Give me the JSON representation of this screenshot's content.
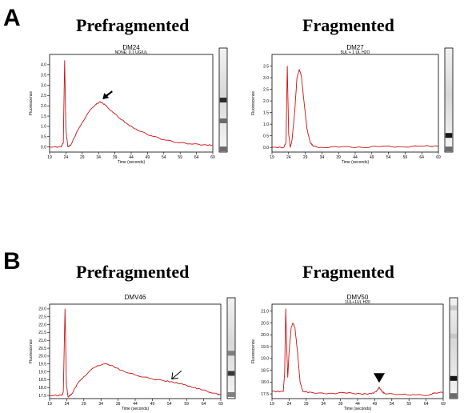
{
  "panels": [
    {
      "letter": "A",
      "left_heading": "Prefragmented",
      "right_heading": "Fragmented"
    },
    {
      "letter": "B",
      "left_heading": "Prefragmented",
      "right_heading": "Fragmented"
    }
  ],
  "colors": {
    "trace": "#cc1111",
    "axis": "#000000",
    "annotation": "#000000"
  },
  "chart_data": [
    {
      "id": "A-left",
      "type": "line",
      "title": "DM24",
      "subtitle": "NONE; 0.1 UG/UL",
      "xlabel": "Time (seconds)",
      "ylabel": "Fluorescence",
      "xlim": [
        19,
        69
      ],
      "ylim": [
        -0.25,
        4.5
      ],
      "xticks": [
        19,
        24,
        29,
        34,
        39,
        44,
        49,
        54,
        59,
        64,
        69
      ],
      "yticks": [
        0.0,
        0.5,
        1.0,
        1.5,
        2.0,
        2.5,
        3.0,
        3.5,
        4.0
      ],
      "ytick_decimals": 1,
      "series": [
        {
          "points": [
            [
              19,
              0.0
            ],
            [
              22.5,
              0.0
            ],
            [
              23.2,
              0.2
            ],
            [
              23.6,
              4.2
            ],
            [
              24.0,
              0.8
            ],
            [
              24.6,
              0.0
            ],
            [
              25.5,
              0.1
            ],
            [
              27,
              0.6
            ],
            [
              29,
              1.2
            ],
            [
              31,
              1.7
            ],
            [
              33,
              2.05
            ],
            [
              34.5,
              2.2
            ],
            [
              36,
              2.05
            ],
            [
              38,
              1.75
            ],
            [
              40,
              1.45
            ],
            [
              43,
              1.1
            ],
            [
              46,
              0.8
            ],
            [
              50,
              0.55
            ],
            [
              54,
              0.35
            ],
            [
              58,
              0.22
            ],
            [
              62,
              0.15
            ],
            [
              66,
              0.1
            ],
            [
              69,
              0.08
            ]
          ]
        }
      ],
      "annotations": [
        {
          "type": "arrow",
          "style": "filled",
          "x": 34.5,
          "y": 2.2,
          "direction": "down-left"
        }
      ],
      "gel_bands": [
        {
          "pos": 0.5,
          "strength": 0.9
        },
        {
          "pos": 0.7,
          "strength": 0.6
        },
        {
          "pos": 0.97,
          "strength": 0.6
        }
      ]
    },
    {
      "id": "A-right",
      "type": "line",
      "title": "DM27",
      "subtitle": "5UL + 1 UL H2O",
      "xlabel": "Time (seconds)",
      "ylabel": "Fluorescence",
      "xlim": [
        19,
        69
      ],
      "ylim": [
        -0.2,
        4.0
      ],
      "xticks": [
        19,
        24,
        29,
        34,
        39,
        44,
        49,
        54,
        59,
        64,
        69
      ],
      "yticks": [
        0.0,
        0.5,
        1.0,
        1.5,
        2.0,
        2.5,
        3.0,
        3.5
      ],
      "ytick_decimals": 1,
      "series": [
        {
          "points": [
            [
              19,
              0.0
            ],
            [
              22.5,
              0.0
            ],
            [
              23.2,
              0.2
            ],
            [
              23.6,
              3.5
            ],
            [
              24.0,
              0.6
            ],
            [
              24.5,
              0.0
            ],
            [
              25.0,
              0.3
            ],
            [
              25.8,
              1.5
            ],
            [
              26.5,
              3.0
            ],
            [
              27.2,
              3.35
            ],
            [
              27.8,
              3.1
            ],
            [
              28.6,
              2.0
            ],
            [
              29.5,
              0.8
            ],
            [
              30.5,
              0.2
            ],
            [
              31.5,
              0.05
            ],
            [
              34,
              0.0
            ],
            [
              40,
              0.03
            ],
            [
              46,
              0.0
            ],
            [
              52,
              0.05
            ],
            [
              58,
              0.02
            ],
            [
              64,
              0.06
            ],
            [
              69,
              0.05
            ]
          ]
        }
      ],
      "annotations": [],
      "gel_bands": [
        {
          "pos": 0.84,
          "strength": 1.0
        },
        {
          "pos": 0.97,
          "strength": 0.6
        }
      ]
    },
    {
      "id": "B-left",
      "type": "line",
      "title": "DMV46",
      "subtitle": "",
      "xlabel": "Time (seconds)",
      "ylabel": "Fluorescence",
      "xlim": [
        19,
        69
      ],
      "ylim": [
        17.3,
        23.3
      ],
      "xticks": [
        19,
        24,
        29,
        34,
        39,
        44,
        49,
        54,
        59,
        64,
        69
      ],
      "yticks": [
        17.5,
        18.0,
        18.5,
        19.0,
        19.5,
        20.0,
        20.5,
        21.0,
        21.5,
        22.0,
        22.5,
        23.0
      ],
      "ytick_decimals": 1,
      "series": [
        {
          "points": [
            [
              19,
              17.5
            ],
            [
              22.5,
              17.5
            ],
            [
              23.0,
              17.7
            ],
            [
              23.5,
              23.0
            ],
            [
              23.9,
              18.2
            ],
            [
              24.4,
              17.4
            ],
            [
              25.5,
              17.6
            ],
            [
              27,
              18.2
            ],
            [
              29,
              18.7
            ],
            [
              31,
              19.1
            ],
            [
              33,
              19.4
            ],
            [
              35,
              19.5
            ],
            [
              37,
              19.4
            ],
            [
              40,
              19.1
            ],
            [
              44,
              18.8
            ],
            [
              48,
              18.6
            ],
            [
              52,
              18.45
            ],
            [
              55,
              18.35
            ],
            [
              58,
              18.2
            ],
            [
              61,
              18.0
            ],
            [
              64,
              17.85
            ],
            [
              66,
              17.7
            ],
            [
              68,
              17.58
            ],
            [
              69,
              17.55
            ]
          ]
        }
      ],
      "annotations": [
        {
          "type": "arrow",
          "style": "open",
          "x": 54,
          "y": 18.4,
          "direction": "down-left"
        }
      ],
      "gel_bands": [
        {
          "pos": 0.55,
          "strength": 0.5
        },
        {
          "pos": 0.75,
          "strength": 0.85
        },
        {
          "pos": 0.96,
          "strength": 0.5
        }
      ]
    },
    {
      "id": "B-right",
      "type": "line",
      "title": "DMV50",
      "subtitle": "1UL+1UL H20",
      "xlabel": "Time (seconds)",
      "ylabel": "Fluorescence",
      "xlim": [
        19,
        69
      ],
      "ylim": [
        17.3,
        21.3
      ],
      "xticks": [
        19,
        24,
        29,
        34,
        39,
        44,
        49,
        54,
        59,
        64,
        69
      ],
      "yticks": [
        17.5,
        18.0,
        18.5,
        19.0,
        19.5,
        20.0,
        20.5,
        21.0
      ],
      "ytick_decimals": 1,
      "series": [
        {
          "points": [
            [
              19,
              17.6
            ],
            [
              22.3,
              17.6
            ],
            [
              22.7,
              18.4
            ],
            [
              23.0,
              21.1
            ],
            [
              23.3,
              19.5
            ],
            [
              23.6,
              18.2
            ],
            [
              24.0,
              19.3
            ],
            [
              24.6,
              20.3
            ],
            [
              25.1,
              20.5
            ],
            [
              25.7,
              20.3
            ],
            [
              26.5,
              19.2
            ],
            [
              27.2,
              18.0
            ],
            [
              28,
              17.6
            ],
            [
              31,
              17.55
            ],
            [
              35,
              17.5
            ],
            [
              40,
              17.55
            ],
            [
              45,
              17.5
            ],
            [
              48,
              17.5
            ],
            [
              49.5,
              17.6
            ],
            [
              50.3,
              17.78
            ],
            [
              51.0,
              17.62
            ],
            [
              52,
              17.5
            ],
            [
              56,
              17.48
            ],
            [
              61,
              17.45
            ],
            [
              65,
              17.45
            ],
            [
              66.5,
              17.55
            ],
            [
              69,
              17.55
            ]
          ]
        }
      ],
      "annotations": [
        {
          "type": "arrowhead",
          "style": "filled",
          "x": 50.3,
          "y": 17.9,
          "direction": "down"
        }
      ],
      "gel_bands": [
        {
          "pos": 0.1,
          "strength": 0.15
        },
        {
          "pos": 0.38,
          "strength": 0.15
        },
        {
          "pos": 0.8,
          "strength": 1.0
        },
        {
          "pos": 0.97,
          "strength": 0.6
        }
      ]
    }
  ]
}
